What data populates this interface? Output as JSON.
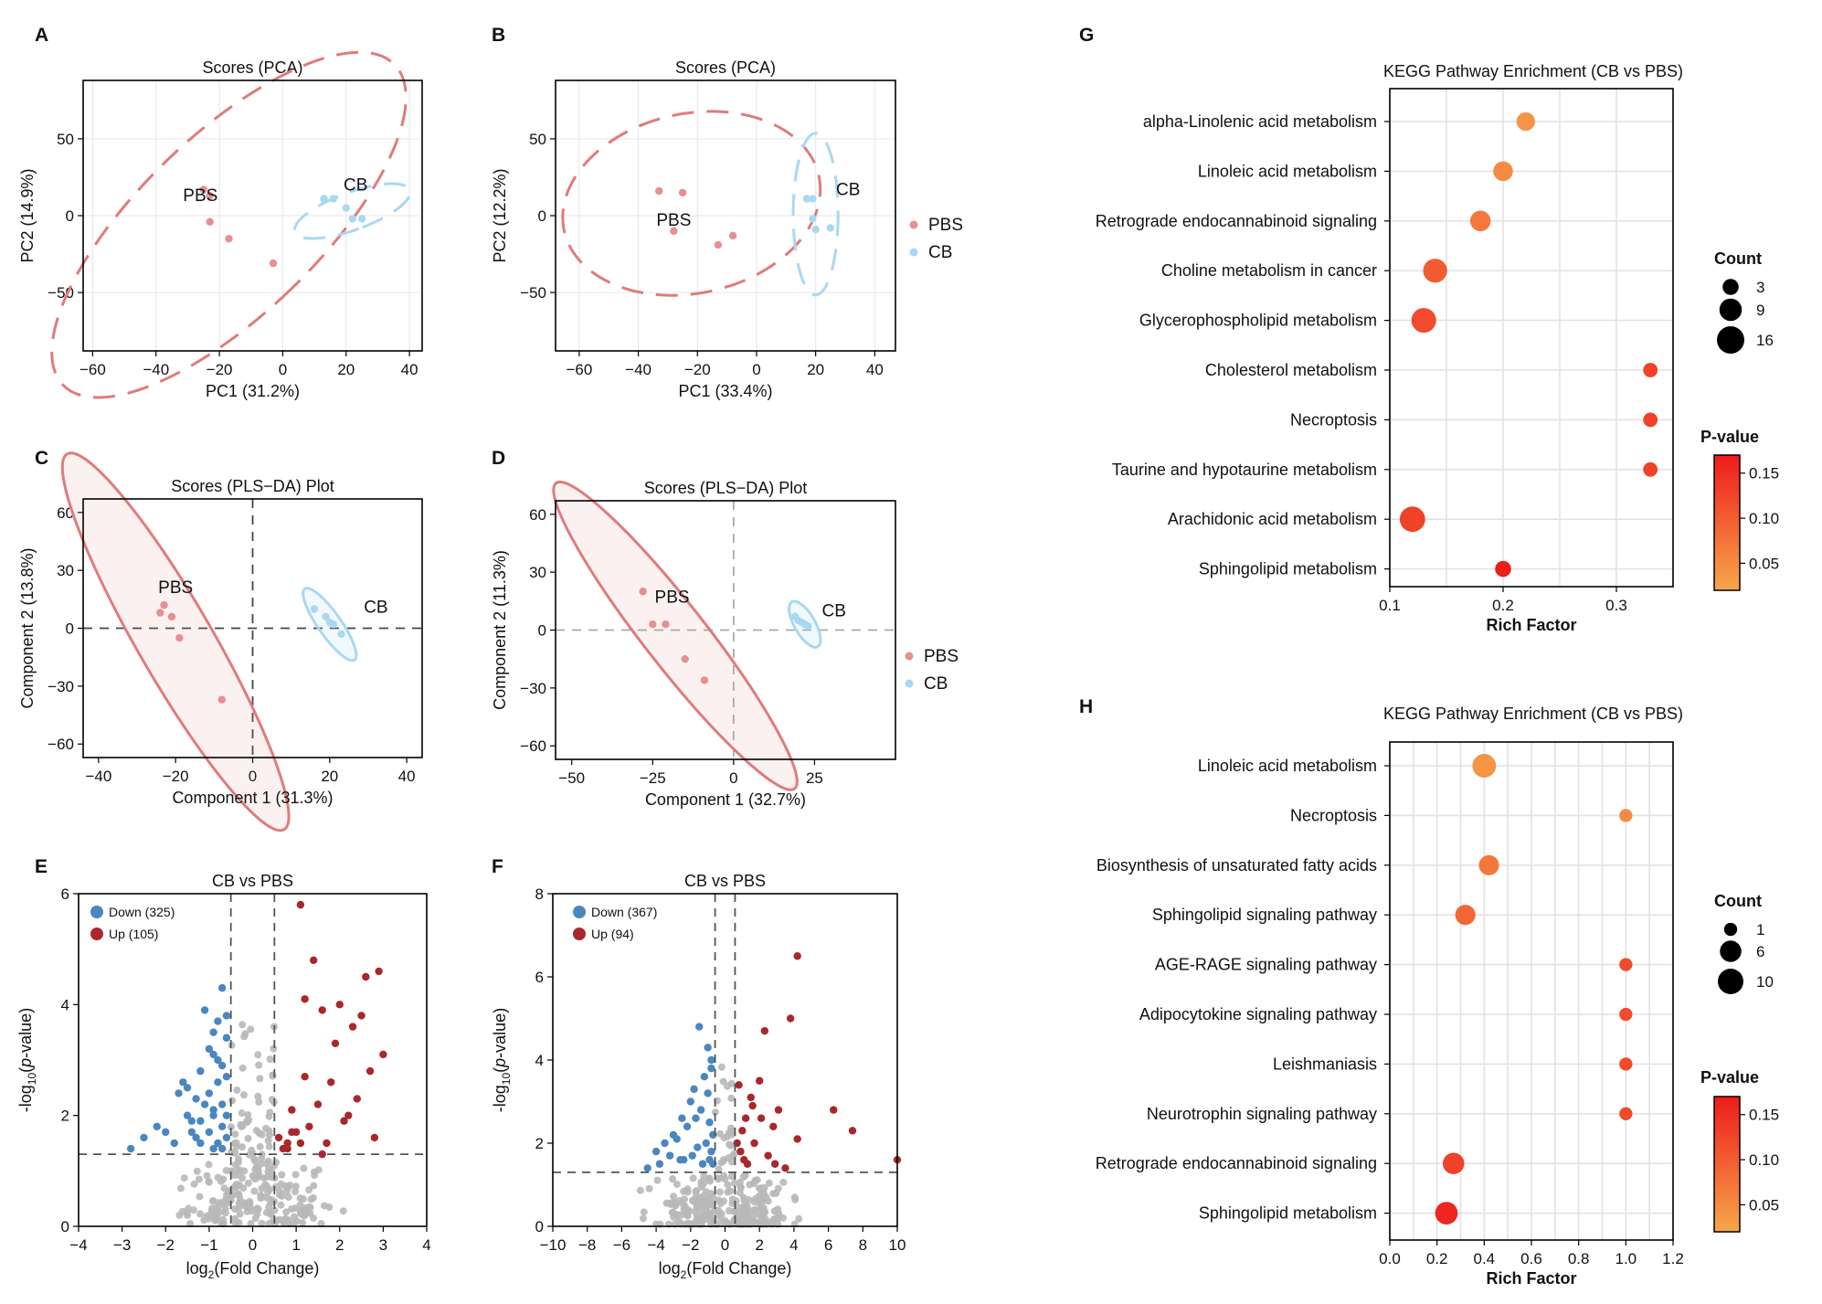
{
  "colors": {
    "pbs": "#e88f8f",
    "pbs_ellipse": "#e07b7b",
    "cb": "#a9d8f2",
    "down": "#4a86bf",
    "up": "#a8282c",
    "ns": "#b8b8b8",
    "p_high": "#ee1c1c",
    "p_low": "#f7a64b"
  },
  "chart_data": [
    {
      "panel": "A",
      "type": "scatter",
      "title": "Scores (PCA)",
      "xlabel": "PC1 (31.2%)",
      "ylabel": "PC2 (14.9%)",
      "xlim": [
        -63,
        44
      ],
      "ylim": [
        -88,
        88
      ],
      "xticks": [
        -60,
        -40,
        -20,
        0,
        20,
        40
      ],
      "yticks": [
        -50,
        0,
        50
      ],
      "grid": true,
      "series": [
        {
          "name": "PBS",
          "x": [
            -25,
            -23,
            -23,
            -17,
            -3
          ],
          "y": [
            17,
            13,
            -4,
            -15,
            -31
          ]
        },
        {
          "name": "CB",
          "x": [
            13,
            16,
            20,
            22,
            25
          ],
          "y": [
            11,
            11,
            5,
            -2,
            -2
          ]
        }
      ],
      "group_labels": [
        "PBS",
        "CB"
      ],
      "legend": []
    },
    {
      "panel": "B",
      "type": "scatter",
      "title": "Scores (PCA)",
      "xlabel": "PC1 (33.4%)",
      "ylabel": "PC2 (12.2%)",
      "xlim": [
        -68,
        47
      ],
      "ylim": [
        -88,
        88
      ],
      "xticks": [
        -60,
        -40,
        -20,
        0,
        20,
        40
      ],
      "yticks": [
        -50,
        0,
        50
      ],
      "grid": true,
      "series": [
        {
          "name": "PBS",
          "x": [
            -33,
            -25,
            -28,
            -13,
            -8
          ],
          "y": [
            16,
            15,
            -10,
            -19,
            -13
          ]
        },
        {
          "name": "CB",
          "x": [
            17,
            19,
            19,
            20,
            25
          ],
          "y": [
            11,
            11,
            -2,
            -9,
            -8
          ]
        }
      ],
      "group_labels": [
        "PBS",
        "CB"
      ],
      "legend": [
        "PBS",
        "CB"
      ]
    },
    {
      "panel": "C",
      "type": "scatter",
      "title": "Scores (PLS−DA) Plot",
      "xlabel": "Component 1 (31.3%)",
      "ylabel": "Component 2 (13.8%)",
      "xlim": [
        -44,
        44
      ],
      "ylim": [
        -67,
        67
      ],
      "xticks": [
        -40,
        -20,
        0,
        20,
        40
      ],
      "yticks": [
        -60,
        -30,
        0,
        30,
        60
      ],
      "grid": false,
      "series": [
        {
          "name": "PBS",
          "x": [
            -24,
            -23,
            -21,
            -19,
            -8
          ],
          "y": [
            8,
            12,
            6,
            -5,
            -37
          ]
        },
        {
          "name": "CB",
          "x": [
            16,
            19,
            20,
            21,
            23
          ],
          "y": [
            10,
            6,
            3,
            2,
            -3
          ]
        }
      ],
      "group_labels": [
        "PBS",
        "CB"
      ],
      "legend": []
    },
    {
      "panel": "D",
      "type": "scatter",
      "title": "Scores (PLS−DA) Plot",
      "xlabel": "Component 1 (32.7%)",
      "ylabel": "Component 2 (11.3%)",
      "xlim": [
        -55,
        50
      ],
      "ylim": [
        -67,
        67
      ],
      "xticks": [
        -50,
        -25,
        0,
        25
      ],
      "yticks": [
        -60,
        -30,
        0,
        30,
        60
      ],
      "grid": false,
      "series": [
        {
          "name": "PBS",
          "x": [
            -28,
            -25,
            -21,
            -15,
            -9
          ],
          "y": [
            20,
            3,
            3,
            -15,
            -26
          ]
        },
        {
          "name": "CB",
          "x": [
            19,
            20,
            21,
            22,
            23
          ],
          "y": [
            7,
            5,
            4,
            3,
            2
          ]
        }
      ],
      "group_labels": [
        "PBS",
        "CB"
      ],
      "legend": [
        "PBS",
        "CB"
      ]
    },
    {
      "panel": "E",
      "type": "scatter",
      "title": "CB vs PBS",
      "xlabel": "log2(Fold Change)",
      "ylabel": "-log10(p-value)",
      "xlim": [
        -4,
        4
      ],
      "ylim": [
        0,
        6
      ],
      "xticks": [
        -4,
        -3,
        -2,
        -1,
        0,
        1,
        2,
        3,
        4
      ],
      "yticks": [
        0,
        2,
        4,
        6
      ],
      "thresholds": {
        "fc": [
          -0.5,
          0.5
        ],
        "p": 1.3
      },
      "legend": [
        "Down (325)",
        "Up (105)"
      ],
      "series": [
        {
          "name": "Down",
          "count": 325,
          "x": [
            -1.5,
            -1.3,
            -1.2,
            -1.0,
            -0.9,
            -0.8,
            -1.6,
            -1.7,
            -2.2,
            -2.5,
            -2.8,
            -1.1,
            -0.7,
            -0.6,
            -0.6,
            -1.4,
            -0.9,
            -1.0,
            -0.8,
            -0.7,
            -1.2,
            -1.3,
            -0.9,
            -0.6,
            -0.7,
            -1.8,
            -2.0,
            -1.5,
            -1.1,
            -0.8,
            -0.7,
            -1.0,
            -0.9,
            -0.6,
            -1.2,
            -0.8,
            -0.7,
            -1.4,
            -0.6,
            -0.9
          ],
          "y": [
            2.5,
            2.3,
            2.8,
            3.2,
            3.5,
            3.0,
            2.6,
            2.4,
            1.8,
            1.6,
            1.4,
            2.2,
            4.3,
            3.8,
            3.4,
            1.9,
            2.1,
            1.7,
            2.6,
            2.2,
            1.5,
            1.6,
            1.4,
            2.0,
            1.8,
            1.5,
            1.7,
            2.0,
            3.9,
            3.7,
            2.9,
            2.4,
            2.0,
            1.6,
            1.9,
            1.5,
            1.4,
            1.7,
            2.7,
            3.1
          ]
        },
        {
          "name": "Up",
          "count": 105,
          "x": [
            1.1,
            1.4,
            1.2,
            1.6,
            2.0,
            2.3,
            2.6,
            2.9,
            3.0,
            2.5,
            2.7,
            1.9,
            0.9,
            1.5,
            1.0,
            0.8,
            2.2,
            2.4,
            1.3,
            1.7,
            0.6,
            0.7,
            0.9,
            2.8,
            2.1,
            1.8,
            1.2,
            0.8,
            1.1,
            1.6
          ],
          "y": [
            5.8,
            4.8,
            4.1,
            3.9,
            4.0,
            3.6,
            4.5,
            4.6,
            3.1,
            3.8,
            2.8,
            3.3,
            2.1,
            2.2,
            1.7,
            1.5,
            2.0,
            2.3,
            1.8,
            1.5,
            1.6,
            1.4,
            1.7,
            1.6,
            1.9,
            2.6,
            2.7,
            1.4,
            1.5,
            1.3
          ]
        }
      ]
    },
    {
      "panel": "F",
      "type": "scatter",
      "title": "CB vs PBS",
      "xlabel": "log2(Fold Change)",
      "ylabel": "-log10(p-value)",
      "xlim": [
        -10,
        10
      ],
      "ylim": [
        0,
        8
      ],
      "xticks": [
        -10,
        -8,
        -6,
        -4,
        -2,
        0,
        2,
        4,
        6,
        8,
        10
      ],
      "yticks": [
        0,
        2,
        4,
        6,
        8
      ],
      "thresholds": {
        "fc": [
          -0.58,
          0.58
        ],
        "p": 1.3
      },
      "legend": [
        "Down (367)",
        "Up (94)"
      ],
      "series": [
        {
          "name": "Down",
          "count": 367,
          "x": [
            -1.5,
            -1.0,
            -0.8,
            -1.2,
            -2.0,
            -2.5,
            -3.0,
            -3.5,
            -4.0,
            -1.8,
            -1.4,
            -0.9,
            -0.7,
            -2.2,
            -2.8,
            -1.6,
            -1.1,
            -0.8,
            -3.2,
            -2.4,
            -1.9,
            -1.3,
            -0.9,
            -0.7,
            -4.5,
            -3.8,
            -2.6,
            -1.7,
            -1.0,
            -0.8
          ],
          "y": [
            4.8,
            4.3,
            4.0,
            3.6,
            3.0,
            2.6,
            2.2,
            2.0,
            1.8,
            3.3,
            2.8,
            2.5,
            2.2,
            2.4,
            2.1,
            1.9,
            2.0,
            1.8,
            1.7,
            1.6,
            1.7,
            1.5,
            1.6,
            1.5,
            1.4,
            1.5,
            1.6,
            2.6,
            3.2,
            3.8
          ]
        },
        {
          "name": "Up",
          "count": 94,
          "x": [
            4.2,
            3.8,
            2.3,
            2.0,
            1.5,
            1.2,
            1.0,
            0.8,
            2.8,
            3.1,
            6.3,
            7.4,
            10.0,
            4.2,
            1.7,
            2.5,
            1.3,
            0.9,
            3.5,
            2.1,
            1.6,
            0.7,
            1.1,
            2.9
          ],
          "y": [
            6.5,
            5.0,
            4.7,
            3.5,
            3.1,
            2.6,
            2.3,
            3.4,
            2.4,
            2.8,
            2.8,
            2.3,
            1.6,
            2.1,
            2.0,
            1.7,
            1.5,
            1.8,
            1.4,
            2.6,
            2.9,
            2.0,
            1.6,
            1.5
          ]
        }
      ]
    },
    {
      "panel": "G",
      "type": "scatter",
      "title": "KEGG Pathway Enrichment (CB vs PBS)",
      "xlabel": "Rich Factor",
      "xlim": [
        0.1,
        0.35
      ],
      "xticks": [
        0.1,
        0.2,
        0.3
      ],
      "size_legend_title": "Count",
      "size_legend": [
        3,
        9,
        16
      ],
      "color_legend_title": "P-value",
      "color_range": [
        0.02,
        0.17
      ],
      "color_ticks": [
        "0.15",
        "0.10",
        "0.05"
      ],
      "pathways": [
        {
          "name": "alpha-Linolenic acid metabolism",
          "rich_factor": 0.22,
          "count": 5,
          "pvalue": 0.04
        },
        {
          "name": "Linoleic acid metabolism",
          "rich_factor": 0.2,
          "count": 6,
          "pvalue": 0.05
        },
        {
          "name": "Retrograde endocannabinoid signaling",
          "rich_factor": 0.18,
          "count": 7,
          "pvalue": 0.07
        },
        {
          "name": "Choline metabolism in cancer",
          "rich_factor": 0.14,
          "count": 11,
          "pvalue": 0.1
        },
        {
          "name": "Glycerophospholipid metabolism",
          "rich_factor": 0.13,
          "count": 12,
          "pvalue": 0.12
        },
        {
          "name": "Cholesterol metabolism",
          "rich_factor": 0.33,
          "count": 2,
          "pvalue": 0.13
        },
        {
          "name": "Necroptosis",
          "rich_factor": 0.33,
          "count": 2,
          "pvalue": 0.13
        },
        {
          "name": "Taurine and hypotaurine metabolism",
          "rich_factor": 0.33,
          "count": 2,
          "pvalue": 0.13
        },
        {
          "name": "Arachidonic acid metabolism",
          "rich_factor": 0.12,
          "count": 13,
          "pvalue": 0.13
        },
        {
          "name": "Sphingolipid metabolism",
          "rich_factor": 0.2,
          "count": 3,
          "pvalue": 0.17
        }
      ]
    },
    {
      "panel": "H",
      "type": "scatter",
      "title": "KEGG Pathway Enrichment (CB vs PBS)",
      "xlabel": "Rich Factor",
      "xlim": [
        0,
        1.2
      ],
      "xticks": [
        0.0,
        0.2,
        0.4,
        0.6,
        0.8,
        1.0,
        1.2
      ],
      "size_legend_title": "Count",
      "size_legend": [
        1,
        6,
        10
      ],
      "color_legend_title": "P-value",
      "color_range": [
        0.02,
        0.17
      ],
      "color_ticks": [
        "0.15",
        "0.10",
        "0.05"
      ],
      "pathways": [
        {
          "name": "Linoleic acid metabolism",
          "rich_factor": 0.4,
          "count": 8,
          "pvalue": 0.04
        },
        {
          "name": "Necroptosis",
          "rich_factor": 1.0,
          "count": 1,
          "pvalue": 0.05
        },
        {
          "name": "Biosynthesis of unsaturated fatty acids",
          "rich_factor": 0.42,
          "count": 5,
          "pvalue": 0.07
        },
        {
          "name": "Sphingolipid signaling pathway",
          "rich_factor": 0.32,
          "count": 5,
          "pvalue": 0.09
        },
        {
          "name": "AGE-RAGE signaling pathway",
          "rich_factor": 1.0,
          "count": 1,
          "pvalue": 0.12
        },
        {
          "name": "Adipocytokine signaling pathway",
          "rich_factor": 1.0,
          "count": 1,
          "pvalue": 0.12
        },
        {
          "name": "Leishmaniasis",
          "rich_factor": 1.0,
          "count": 1,
          "pvalue": 0.12
        },
        {
          "name": "Neurotrophin signaling pathway",
          "rich_factor": 1.0,
          "count": 1,
          "pvalue": 0.12
        },
        {
          "name": "Retrograde endocannabinoid signaling",
          "rich_factor": 0.27,
          "count": 6,
          "pvalue": 0.13
        },
        {
          "name": "Sphingolipid metabolism",
          "rich_factor": 0.24,
          "count": 7,
          "pvalue": 0.16
        }
      ]
    }
  ]
}
